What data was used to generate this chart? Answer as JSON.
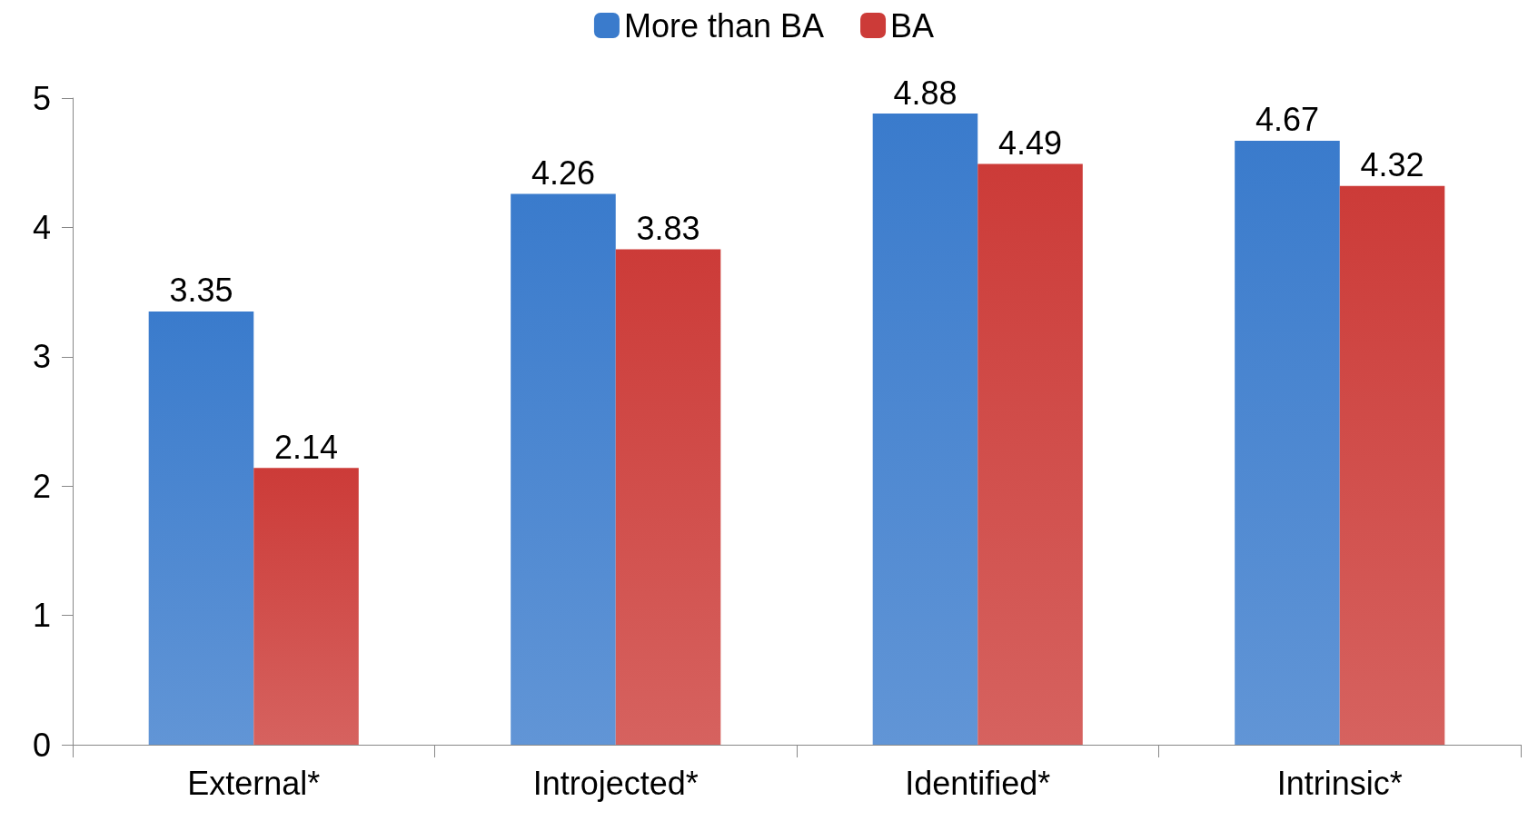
{
  "chart_data": {
    "type": "bar",
    "categories": [
      "External*",
      "Introjected*",
      "Identified*",
      "Intrinsic*"
    ],
    "series": [
      {
        "name": "More than BA",
        "color": "#3a7bcc",
        "values": [
          3.35,
          4.26,
          4.88,
          4.67
        ]
      },
      {
        "name": "BA",
        "color": "#cc3b38",
        "values": [
          2.14,
          3.83,
          4.49,
          4.32
        ]
      }
    ],
    "ylim": [
      0,
      5
    ],
    "yticks": [
      0,
      1,
      2,
      3,
      4,
      5
    ],
    "data_labels": true,
    "legend": "top",
    "grid": false
  }
}
